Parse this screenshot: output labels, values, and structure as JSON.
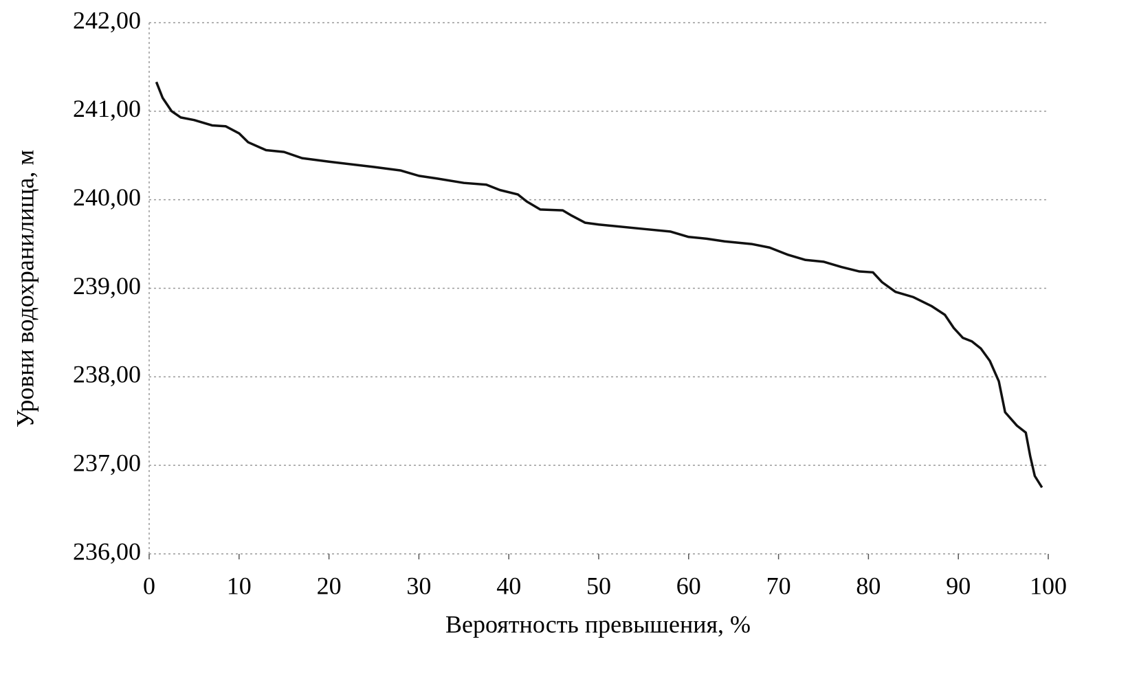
{
  "chart_data": {
    "type": "line",
    "x_label": "Вероятность превышения, %",
    "y_label": "Уровни водохранилища, м",
    "color": "#111111",
    "grid": true,
    "x": [
      0.8,
      1.5,
      2.5,
      3.5,
      5,
      7,
      8.5,
      10,
      11,
      13,
      15,
      17,
      20,
      25,
      28,
      30,
      32,
      35,
      37.5,
      39,
      41,
      42,
      43.5,
      46,
      47,
      48.5,
      50,
      55,
      58,
      60,
      62,
      64,
      67,
      69,
      71,
      73,
      75,
      77,
      79,
      80.5,
      81.5,
      83,
      85,
      87,
      88.5,
      89.5,
      90.5,
      91.5,
      92.5,
      93.5,
      94.5,
      95.2,
      96.5,
      97.5,
      98,
      98.5,
      99.3
    ],
    "values": [
      241.33,
      241.15,
      241.0,
      240.93,
      240.9,
      240.84,
      240.83,
      240.75,
      240.65,
      240.56,
      240.54,
      240.47,
      240.43,
      240.37,
      240.33,
      240.27,
      240.24,
      240.19,
      240.17,
      240.11,
      240.06,
      239.98,
      239.89,
      239.88,
      239.82,
      239.74,
      239.72,
      239.67,
      239.64,
      239.58,
      239.56,
      239.53,
      239.5,
      239.46,
      239.38,
      239.32,
      239.3,
      239.24,
      239.19,
      239.18,
      239.07,
      238.96,
      238.9,
      238.8,
      238.7,
      238.55,
      238.44,
      238.4,
      238.32,
      238.18,
      237.95,
      237.6,
      237.45,
      237.37,
      237.1,
      236.88,
      236.75
    ],
    "xlim": [
      0,
      100
    ],
    "xticks": [
      0,
      10,
      20,
      30,
      40,
      50,
      60,
      70,
      80,
      90,
      100
    ],
    "ylim": [
      236,
      242
    ],
    "yticks": [
      {
        "value": 236,
        "label": "236,00"
      },
      {
        "value": 237,
        "label": "237,00"
      },
      {
        "value": 238,
        "label": "238,00"
      },
      {
        "value": 239,
        "label": "239,00"
      },
      {
        "value": 240,
        "label": "240,00"
      },
      {
        "value": 241,
        "label": "241,00"
      },
      {
        "value": 242,
        "label": "242,00"
      }
    ]
  }
}
